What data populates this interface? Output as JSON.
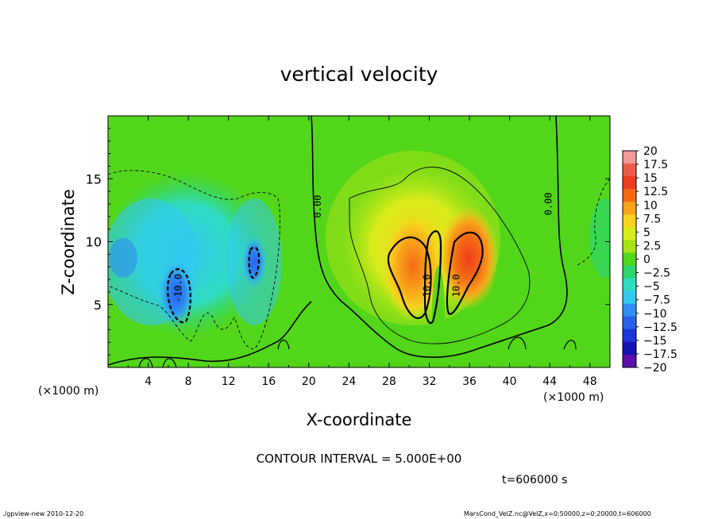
{
  "chart_data": {
    "type": "heatmap",
    "title": "vertical velocity",
    "xlabel": "X-coordinate",
    "ylabel": "Z-coordinate",
    "x_unit": "(×1000 m)",
    "y_unit": "(×1000 m)",
    "xlim": [
      0,
      50
    ],
    "ylim": [
      0,
      20
    ],
    "x_ticks": [
      "4",
      "8",
      "12",
      "16",
      "20",
      "24",
      "28",
      "32",
      "36",
      "40",
      "44",
      "48"
    ],
    "y_ticks": [
      "5",
      "10",
      "15"
    ],
    "contour_interval_text": "CONTOUR INTERVAL = 5.000E+00",
    "time_text": "t=606000 s",
    "colorbar_labels": [
      "20",
      "17.5",
      "15",
      "12.5",
      "10",
      "7.5",
      "5",
      "2.5",
      "0",
      "−2.5",
      "−5",
      "−7.5",
      "−10",
      "−12.5",
      "−15",
      "−17.5",
      "−20"
    ],
    "colorbar_colors": [
      "#f29a9a",
      "#ee5a4a",
      "#ef3c1e",
      "#f46a14",
      "#f9a21a",
      "#f8d21e",
      "#d6ec1a",
      "#a6e318",
      "#52d61a",
      "#2dd56a",
      "#2fdcc0",
      "#33c8f0",
      "#2f8ef2",
      "#2860ea",
      "#1c34da",
      "#1414b4",
      "#5a0fa8"
    ],
    "contour_labels": [
      {
        "text": "0.00",
        "x": 21.2,
        "z": 12.8
      },
      {
        "text": "0.00",
        "x": 44.2,
        "z": 13.0
      },
      {
        "text": "10.0",
        "x": 32.1,
        "z": 6.5
      },
      {
        "text": "10.0",
        "x": 35.0,
        "z": 6.5
      },
      {
        "text": "-10.0",
        "x": 7.3,
        "z": 6.3
      }
    ],
    "features": [
      {
        "kind": "updraft",
        "x": [
          28,
          37
        ],
        "z": [
          3,
          11
        ],
        "peak": "12.5"
      },
      {
        "kind": "downdraft",
        "x": [
          5,
          9
        ],
        "z": [
          3,
          8
        ],
        "peak": "-12.5"
      },
      {
        "kind": "downdraft",
        "x": [
          13,
          16
        ],
        "z": [
          5,
          10
        ],
        "peak": "-10"
      }
    ]
  },
  "footer": {
    "left": "./gpview-new   2010-12-20",
    "right": "MarsCond_VelZ.nc@VelZ,x=0:50000,z=0:20000,t=606000"
  }
}
